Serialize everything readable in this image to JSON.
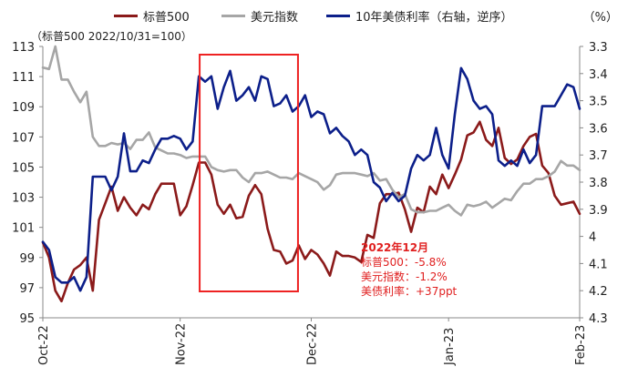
{
  "legend": {
    "sp500": "标普500",
    "dxy": "美元指数",
    "ust10y": "10年美债利率（右轴，逆序）"
  },
  "unit_right": "（%）",
  "base_note": "（标普500  2022/10/31=100）",
  "annotation": {
    "title": "2022年12月",
    "line1": "标普500：-5.8%",
    "line2": "美元指数：-1.2%",
    "line3": "美债利率：+37ppt"
  },
  "colors": {
    "sp500": "#8b1a1a",
    "dxy": "#a6a6a6",
    "ust10y": "#0c1f8a",
    "highlight": "#ee2222",
    "annotation": "#e02020"
  },
  "chart_data": {
    "type": "line",
    "x_ticks": [
      "Oct-22",
      "Nov-22",
      "Dec-22",
      "Jan-23",
      "Feb-23"
    ],
    "n_points": 87,
    "tick_index": [
      0,
      22,
      43,
      65,
      86
    ],
    "y_left": {
      "min": 95,
      "max": 113,
      "ticks": [
        95,
        97,
        99,
        101,
        103,
        105,
        107,
        109,
        111,
        113
      ]
    },
    "y_right": {
      "min": 3.3,
      "max": 4.3,
      "inverted": true,
      "ticks": [
        "3.3",
        "3.4",
        "3.5",
        "3.6",
        "3.7",
        "3.8",
        "3.9",
        "4",
        "4.1",
        "4.2",
        "4.3"
      ]
    },
    "highlight_index_range": [
      26,
      40
    ],
    "series": [
      {
        "name": "标普500",
        "axis": "left",
        "values": [
          100.0,
          99.0,
          96.8,
          96.1,
          97.3,
          98.2,
          98.5,
          99.0,
          96.8,
          101.5,
          102.6,
          103.7,
          102.1,
          103.0,
          102.3,
          101.8,
          102.5,
          102.2,
          103.2,
          103.9,
          103.9,
          103.9,
          101.8,
          102.4,
          103.8,
          105.3,
          105.3,
          104.5,
          102.5,
          101.9,
          102.5,
          101.6,
          101.7,
          103.1,
          103.8,
          103.2,
          100.9,
          99.5,
          99.4,
          98.6,
          98.8,
          99.8,
          98.9,
          99.5,
          99.2,
          98.6,
          97.8,
          99.4,
          99.1,
          99.1,
          99.0,
          98.7,
          100.5,
          100.3,
          102.6,
          103.2,
          103.2,
          103.3,
          102.2,
          100.7,
          102.3,
          102.0,
          103.7,
          103.2,
          104.5,
          103.6,
          104.5,
          105.5,
          107.1,
          107.3,
          108.0,
          106.8,
          106.4,
          107.6,
          105.6,
          105.2,
          105.5,
          106.4,
          107.0,
          107.2,
          105.1,
          104.6,
          103.1,
          102.5,
          102.6,
          102.7,
          101.9
        ]
      },
      {
        "name": "美元指数",
        "axis": "left",
        "values": [
          111.6,
          111.5,
          113.0,
          110.8,
          110.8,
          110.0,
          109.3,
          110.0,
          107.0,
          106.4,
          106.4,
          106.6,
          106.5,
          106.6,
          106.2,
          106.8,
          106.8,
          107.3,
          106.3,
          106.1,
          105.9,
          105.9,
          105.8,
          105.6,
          105.7,
          105.7,
          105.7,
          105.0,
          104.8,
          104.7,
          104.8,
          104.8,
          104.3,
          104.0,
          104.6,
          104.6,
          104.7,
          104.5,
          104.3,
          104.3,
          104.2,
          104.6,
          104.4,
          104.2,
          104.0,
          103.5,
          103.8,
          104.5,
          104.6,
          104.6,
          104.6,
          104.5,
          104.4,
          104.6,
          104.1,
          104.2,
          103.5,
          103.0,
          103.2,
          102.2,
          102.0,
          102.0,
          102.1,
          102.1,
          102.3,
          102.5,
          102.1,
          101.8,
          102.5,
          102.4,
          102.5,
          102.7,
          102.3,
          102.6,
          102.9,
          102.8,
          103.4,
          103.9,
          103.9,
          104.2,
          104.2,
          104.4,
          104.7,
          105.4,
          105.1,
          105.1,
          104.8
        ]
      },
      {
        "name": "10年美债利率",
        "axis": "right",
        "values": [
          4.02,
          4.05,
          4.15,
          4.17,
          4.17,
          4.15,
          4.2,
          4.15,
          3.78,
          3.78,
          3.78,
          3.83,
          3.78,
          3.62,
          3.76,
          3.76,
          3.72,
          3.73,
          3.68,
          3.64,
          3.64,
          3.63,
          3.64,
          3.68,
          3.65,
          3.41,
          3.43,
          3.41,
          3.53,
          3.45,
          3.39,
          3.5,
          3.48,
          3.45,
          3.5,
          3.41,
          3.42,
          3.52,
          3.51,
          3.48,
          3.54,
          3.52,
          3.48,
          3.56,
          3.54,
          3.55,
          3.62,
          3.6,
          3.63,
          3.65,
          3.7,
          3.68,
          3.7,
          3.8,
          3.82,
          3.87,
          3.84,
          3.87,
          3.85,
          3.75,
          3.7,
          3.72,
          3.7,
          3.6,
          3.7,
          3.75,
          3.55,
          3.38,
          3.42,
          3.5,
          3.53,
          3.52,
          3.55,
          3.72,
          3.74,
          3.72,
          3.74,
          3.68,
          3.73,
          3.7,
          3.52,
          3.52,
          3.52,
          3.48,
          3.44,
          3.45,
          3.53
        ]
      }
    ]
  }
}
